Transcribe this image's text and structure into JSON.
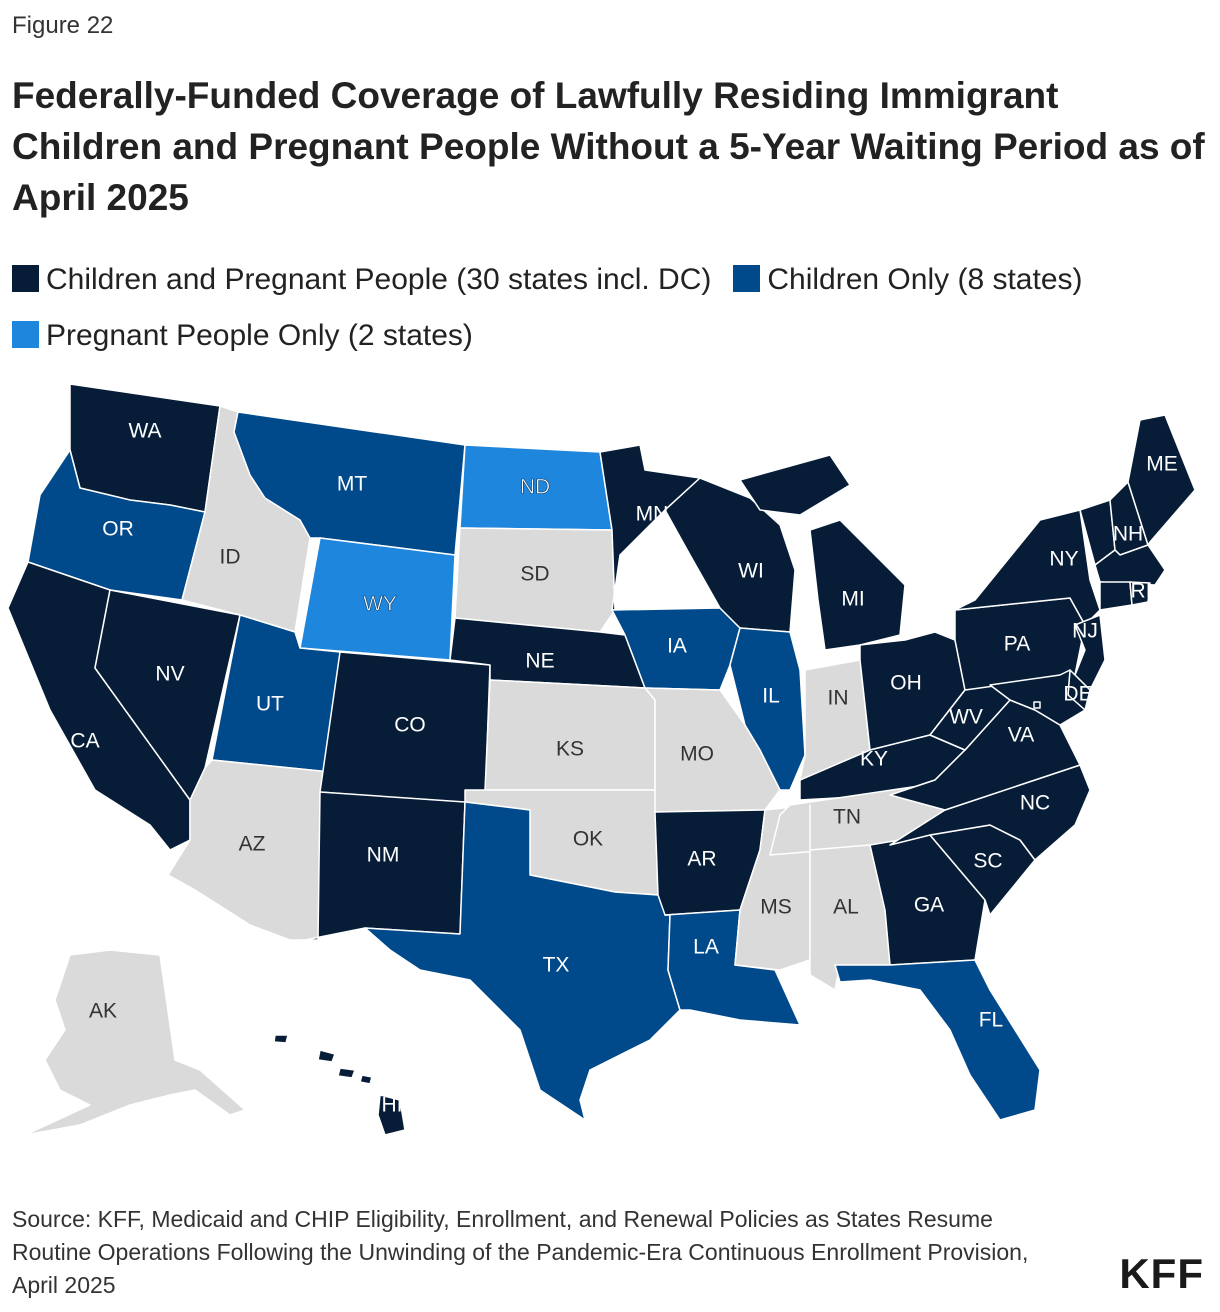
{
  "figure_label": "Figure 22",
  "title": "Federally-Funded Coverage of Lawfully Residing Immigrant Children and Pregnant People Without a 5-Year Waiting Period as of April 2025",
  "legend": [
    {
      "key": "both",
      "label": "Children and Pregnant People (30 states incl. DC)",
      "color": "#071d37"
    },
    {
      "key": "children",
      "label": "Children Only (8 states)",
      "color": "#004a8c"
    },
    {
      "key": "pregnant",
      "label": "Pregnant People Only (2 states)",
      "color": "#1f86dd"
    }
  ],
  "colors": {
    "both": "#071d37",
    "children": "#004a8c",
    "pregnant": "#1f86dd",
    "none": "#dadada"
  },
  "states": {
    "WA": "both",
    "OR": "children",
    "CA": "both",
    "NV": "both",
    "ID": "none",
    "MT": "children",
    "WY": "pregnant",
    "UT": "children",
    "AZ": "none",
    "CO": "both",
    "NM": "both",
    "ND": "pregnant",
    "SD": "none",
    "NE": "both",
    "KS": "none",
    "OK": "none",
    "TX": "children",
    "MN": "both",
    "IA": "children",
    "MO": "none",
    "AR": "both",
    "LA": "children",
    "WI": "both",
    "IL": "children",
    "MS": "none",
    "MI": "both",
    "IN": "none",
    "OH": "both",
    "KY": "both",
    "TN": "none",
    "AL": "none",
    "GA": "both",
    "FL": "children",
    "SC": "both",
    "NC": "both",
    "VA": "both",
    "WV": "both",
    "PA": "both",
    "NY": "both",
    "VT": "both",
    "NH": "both",
    "ME": "both",
    "MA": "both",
    "RI": "both",
    "CT": "both",
    "NJ": "both",
    "DE": "both",
    "MD": "both",
    "DC": "both",
    "AK": "none",
    "HI": "both"
  },
  "state_labels": {
    "WA": "WA",
    "OR": "OR",
    "CA": "CA",
    "NV": "NV",
    "ID": "ID",
    "MT": "MT",
    "WY": "WY",
    "UT": "UT",
    "AZ": "AZ",
    "CO": "CO",
    "NM": "NM",
    "ND": "ND",
    "SD": "SD",
    "NE": "NE",
    "KS": "KS",
    "OK": "OK",
    "TX": "TX",
    "MN": "MN",
    "IA": "IA",
    "MO": "MO",
    "AR": "AR",
    "LA": "LA",
    "WI": "WI",
    "IL": "IL",
    "MS": "MS",
    "MI": "MI",
    "IN": "IN",
    "OH": "OH",
    "KY": "KY",
    "TN": "TN",
    "AL": "AL",
    "GA": "GA",
    "FL": "FL",
    "SC": "SC",
    "NC": "NC",
    "VA": "VA",
    "WV": "WV",
    "PA": "PA",
    "NY": "NY",
    "NH": "NH",
    "ME": "ME",
    "RI": "RI",
    "NJ": "NJ",
    "DE": "DE",
    "AK": "AK",
    "HI": "HI"
  },
  "source": "Source: KFF, Medicaid and CHIP Eligibility, Enrollment, and Renewal Policies as States Resume Routine Operations Following the Unwinding of the Pandemic-Era Continuous Enrollment Provision, April 2025",
  "logo": "KFF"
}
